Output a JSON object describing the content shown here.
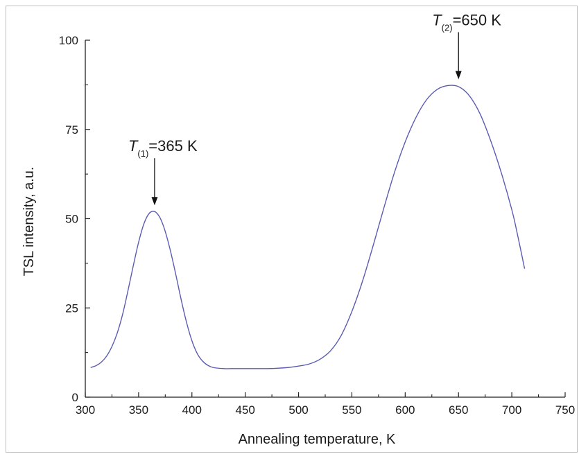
{
  "chart_data": {
    "type": "line",
    "title": "",
    "xlabel": "Annealing temperature, K",
    "ylabel": "TSL intensity, a.u.",
    "xlim": [
      300,
      750
    ],
    "ylim": [
      0,
      100
    ],
    "x_ticks": [
      300,
      350,
      400,
      450,
      500,
      550,
      600,
      650,
      700,
      750
    ],
    "y_ticks": [
      0,
      25,
      50,
      75,
      100
    ],
    "grid": false,
    "legend": "none",
    "line_color": "#5b5bb4",
    "series": [
      {
        "x": [
          305,
          310,
          315,
          320,
          325,
          330,
          335,
          340,
          345,
          350,
          355,
          360,
          365,
          370,
          375,
          380,
          385,
          390,
          395,
          400,
          405,
          410,
          415,
          420,
          430,
          440,
          450,
          460,
          470,
          480,
          490,
          500,
          510,
          520,
          530,
          540,
          550,
          560,
          570,
          580,
          590,
          600,
          610,
          620,
          630,
          640,
          650,
          660,
          670,
          680,
          690,
          700,
          705,
          712
        ],
        "values": [
          8.3,
          8.8,
          9.8,
          11.5,
          14.2,
          18.0,
          23.2,
          29.8,
          36.8,
          43.4,
          48.6,
          51.5,
          52.0,
          50.3,
          46.4,
          40.8,
          34.2,
          27.2,
          20.9,
          15.8,
          12.2,
          10.1,
          8.9,
          8.3,
          8.0,
          8.0,
          8.0,
          8.0,
          8.0,
          8.1,
          8.3,
          8.7,
          9.3,
          10.6,
          13.0,
          17.3,
          24.0,
          32.5,
          42.5,
          53.0,
          63.0,
          71.5,
          78.3,
          83.3,
          86.2,
          87.3,
          87.0,
          84.5,
          79.5,
          72.0,
          63.0,
          52.5,
          46.0,
          36.0
        ]
      }
    ],
    "annotations": [
      {
        "symbol": "T",
        "subscript": "(1)",
        "text": "=365 K",
        "x": 365,
        "y": 52
      },
      {
        "symbol": "T",
        "subscript": "(2)",
        "text": "=650 K",
        "x": 650,
        "y": 87.3
      }
    ]
  }
}
